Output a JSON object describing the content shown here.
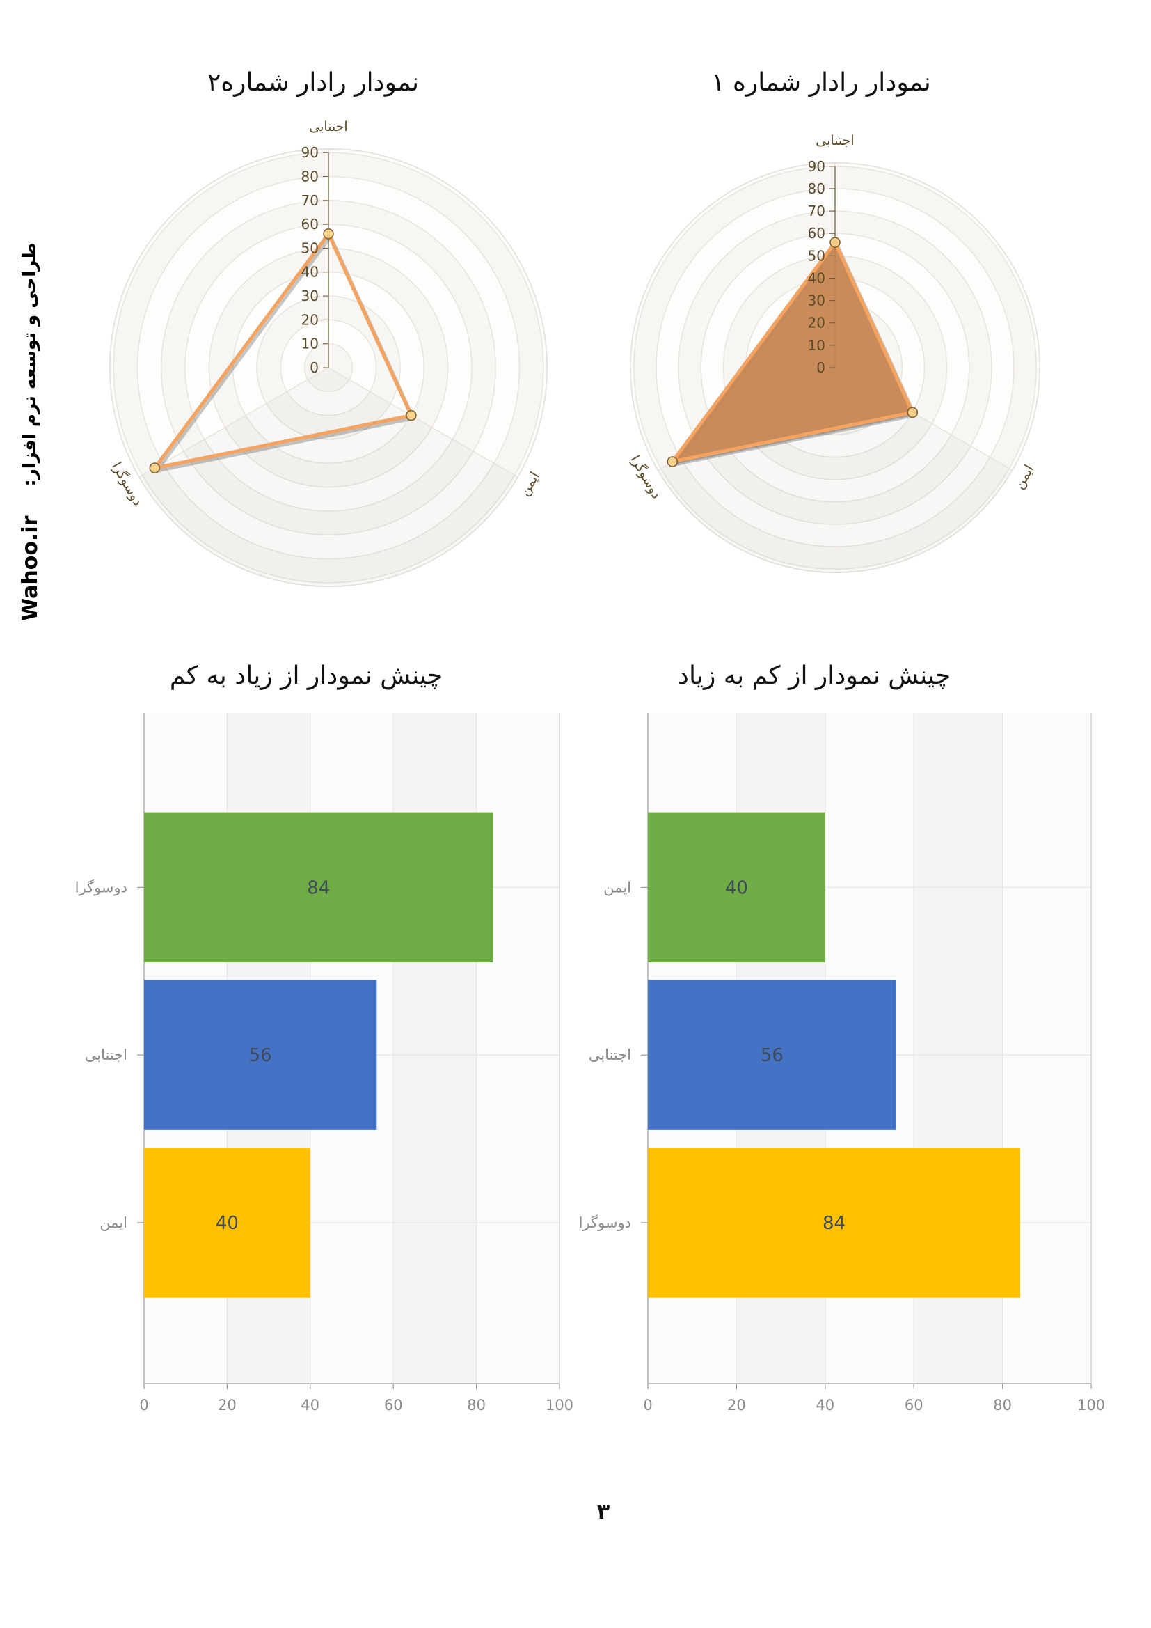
{
  "page": {
    "side_credit": "طراحی و توسعه نرم افزار:",
    "side_site": "Wahoo.ir",
    "page_number": "۳"
  },
  "colors": {
    "radar_line": "#f4a460",
    "radar_fill": "#c98650",
    "radar_grid": "#e8e4de",
    "radar_band": "#f7f6f3",
    "radar_axis_text": "#5a4a2a",
    "bar_green": "#70ad47",
    "bar_blue": "#4472c4",
    "bar_yellow": "#ffc000",
    "bar_grid": "#e6e6e6",
    "bar_band": "#f5f5f5"
  },
  "chart_data": [
    {
      "id": "radar-1",
      "type": "radar",
      "title": "نمودار رادار شماره ۱",
      "axes": [
        "اجتنابی",
        "ایمن",
        "دوسوگرا"
      ],
      "values": [
        56,
        40,
        84
      ],
      "rlim": [
        0,
        90
      ],
      "ticks": [
        0,
        10,
        20,
        30,
        40,
        50,
        60,
        70,
        80,
        90
      ],
      "filled": true
    },
    {
      "id": "radar-2",
      "type": "radar",
      "title": "نمودار رادار شماره۲",
      "axes": [
        "اجتنابی",
        "ایمن",
        "دوسوگرا"
      ],
      "values": [
        56,
        40,
        84
      ],
      "rlim": [
        0,
        90
      ],
      "ticks": [
        0,
        10,
        20,
        30,
        40,
        50,
        60,
        70,
        80,
        90
      ],
      "filled": false
    },
    {
      "id": "bar-asc",
      "type": "bar",
      "orientation": "horizontal",
      "title": "چینش نمودار از کم به زیاد",
      "categories": [
        "ایمن",
        "اجتنابی",
        "دوسوگرا"
      ],
      "values": [
        40,
        56,
        84
      ],
      "bar_colors": [
        "#70ad47",
        "#4472c4",
        "#ffc000"
      ],
      "xlim": [
        0,
        100
      ],
      "xticks": [
        0,
        20,
        40,
        60,
        80,
        100
      ],
      "grid": true
    },
    {
      "id": "bar-desc",
      "type": "bar",
      "orientation": "horizontal",
      "title": "چینش نمودار از زیاد به کم",
      "categories": [
        "دوسوگرا",
        "اجتنابی",
        "ایمن"
      ],
      "values": [
        84,
        56,
        40
      ],
      "bar_colors": [
        "#70ad47",
        "#4472c4",
        "#ffc000"
      ],
      "xlim": [
        0,
        100
      ],
      "xticks": [
        0,
        20,
        40,
        60,
        80,
        100
      ],
      "grid": true
    }
  ]
}
